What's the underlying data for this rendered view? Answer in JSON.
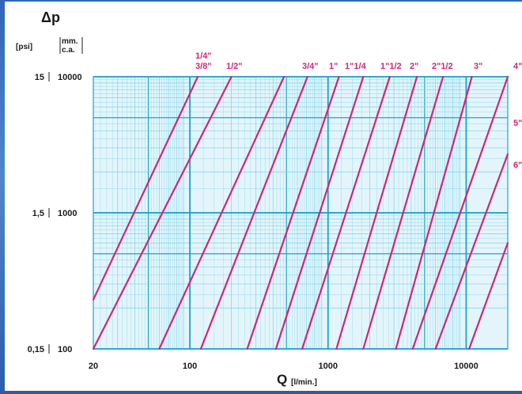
{
  "chart_data": {
    "type": "line",
    "title": "",
    "y_title": "Δp",
    "y_units": [
      "[psi]",
      "[mm. c.a.]"
    ],
    "y_units_mm_lines": [
      "mm.",
      "c.a."
    ],
    "x_title": "Q",
    "x_unit": "[l/min.]",
    "x_scale": "log",
    "y_scale": "log",
    "xlim": [
      20,
      20000
    ],
    "ylim": [
      100,
      10000
    ],
    "grid": true,
    "x_ticks": [
      {
        "value": 20,
        "label": "20"
      },
      {
        "value": 100,
        "label": "100"
      },
      {
        "value": 1000,
        "label": "1000"
      },
      {
        "value": 10000,
        "label": "10000"
      }
    ],
    "y_ticks": [
      {
        "value": 100,
        "psi": "0,15",
        "mm": "100"
      },
      {
        "value": 1000,
        "psi": "1,5",
        "mm": "1000"
      },
      {
        "value": 10000,
        "psi": "15",
        "mm": "10000"
      }
    ],
    "series": [
      {
        "name": "1/4\"",
        "points": [
          [
            20,
            230
          ],
          [
            114,
            10000
          ]
        ]
      },
      {
        "name": "3/8\"",
        "points": [
          [
            20,
            100
          ],
          [
            200,
            10000
          ]
        ]
      },
      {
        "name": "1/2\"",
        "points": [
          [
            60,
            100
          ],
          [
            480,
            10000
          ]
        ]
      },
      {
        "name": "3/4\"",
        "points": [
          [
            120,
            100
          ],
          [
            710,
            10000
          ]
        ]
      },
      {
        "name": "1\"",
        "points": [
          [
            260,
            100
          ],
          [
            1200,
            10000
          ]
        ]
      },
      {
        "name": "1\"1/4",
        "points": [
          [
            420,
            100
          ],
          [
            1800,
            10000
          ]
        ]
      },
      {
        "name": "1\"1/2",
        "points": [
          [
            650,
            100
          ],
          [
            2800,
            10000
          ]
        ]
      },
      {
        "name": "2\"",
        "points": [
          [
            1150,
            100
          ],
          [
            4400,
            10000
          ]
        ]
      },
      {
        "name": "2\"1/2",
        "points": [
          [
            1800,
            100
          ],
          [
            6800,
            10000
          ]
        ]
      },
      {
        "name": "3\"",
        "points": [
          [
            3100,
            100
          ],
          [
            11000,
            10000
          ]
        ]
      },
      {
        "name": "4\"",
        "points": [
          [
            4100,
            100
          ],
          [
            20000,
            10000
          ]
        ]
      },
      {
        "name": "5\"",
        "points": [
          [
            6000,
            100
          ],
          [
            20000,
            2700
          ]
        ]
      },
      {
        "name": "6\"",
        "points": [
          [
            10500,
            100
          ],
          [
            20000,
            600
          ]
        ]
      }
    ],
    "colors": {
      "grid_major": "#16a6cc",
      "grid_minor": "#7cd2e6",
      "plot_bg": "#e3f5fb",
      "series": "#d4237a",
      "text": "#1a1a1a",
      "frame": "#2f67b6"
    }
  }
}
